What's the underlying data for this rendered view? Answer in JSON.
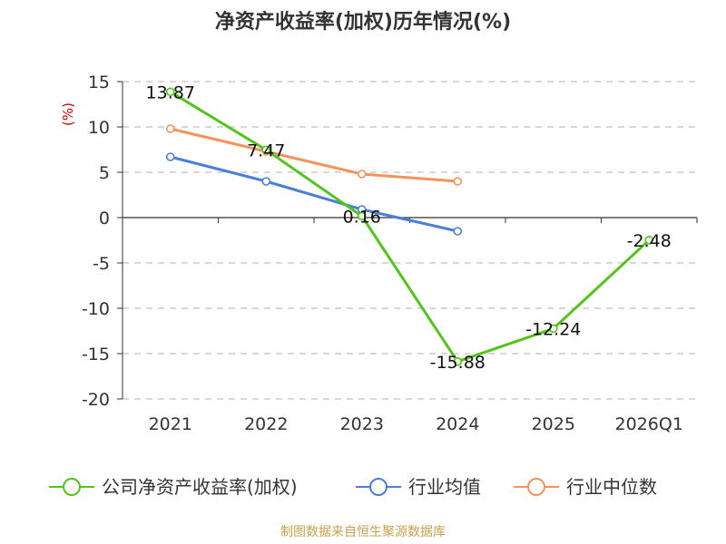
{
  "chart_data": {
    "type": "line",
    "title": "净资产收益率(加权)历年情况(%)",
    "ylabel": "(%)",
    "categories": [
      "2021",
      "2022",
      "2023",
      "2024",
      "2025",
      "2026Q1"
    ],
    "ylim": [
      -20,
      15
    ],
    "yticks": [
      15,
      10,
      5,
      0,
      -5,
      -10,
      -15,
      -20
    ],
    "series": [
      {
        "name": "公司净资产收益率(加权)",
        "color": "#52c41a",
        "values": [
          13.87,
          7.47,
          0.16,
          -15.88,
          -12.24,
          -2.48
        ],
        "labels": [
          "13.87",
          "7.47",
          "0.16",
          "-15.88",
          "-12.24",
          "-2.48"
        ]
      },
      {
        "name": "行业均值",
        "color": "#4a7fd6",
        "values": [
          6.7,
          4.0,
          0.9,
          -1.5,
          null,
          null
        ]
      },
      {
        "name": "行业中位数",
        "color": "#f5935a",
        "values": [
          9.8,
          7.3,
          4.8,
          4.0,
          null,
          null
        ]
      }
    ],
    "grid": "horizontal-dashed",
    "legend_position": "bottom"
  },
  "source": "制图数据来自恒生聚源数据库",
  "colors": {
    "source_text": "#c8a24a",
    "axis": "#333333",
    "grid": "#cccccc",
    "y_unit": "#d40000"
  }
}
